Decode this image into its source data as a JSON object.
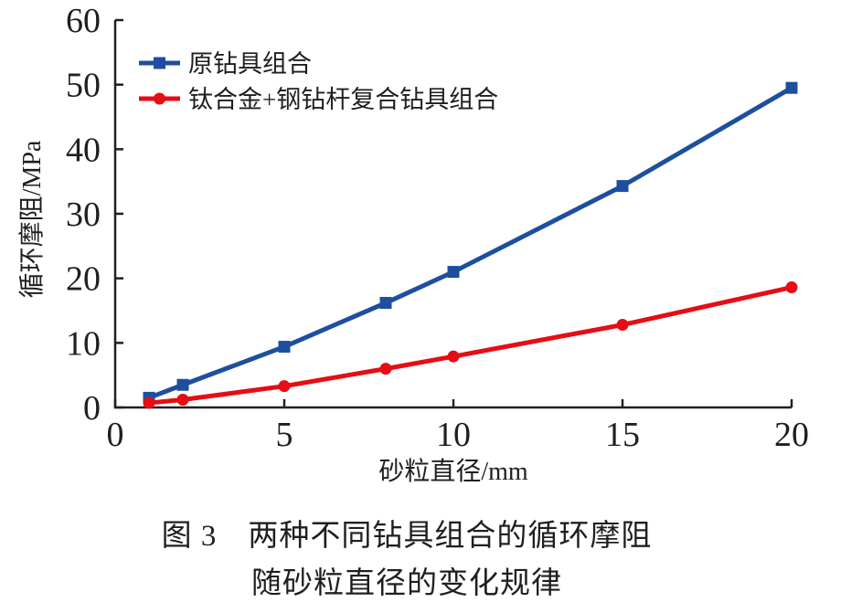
{
  "figure": {
    "background": "#ffffff",
    "text_color": "#1f1f1f",
    "axis_color": "#231f20"
  },
  "chart_data": {
    "type": "line",
    "title": "",
    "xlabel": "砂粒直径/mm",
    "ylabel": "循环摩阻/MPa",
    "xlim": [
      0,
      20
    ],
    "ylim": [
      0,
      60
    ],
    "xticks": [
      0,
      5,
      10,
      15,
      20
    ],
    "yticks": [
      0,
      10,
      20,
      30,
      40,
      50,
      60
    ],
    "grid": false,
    "legend_position": "top-left",
    "x": [
      1,
      2,
      5,
      8,
      10,
      15,
      20
    ],
    "series": [
      {
        "name": "原钻具组合",
        "color": "#1d4f9e",
        "marker": "square",
        "values": [
          1.5,
          3.5,
          9.4,
          16.2,
          21.0,
          34.3,
          49.5
        ]
      },
      {
        "name": "钛合金+钢钻杆复合钻具组合",
        "color": "#e60d15",
        "marker": "circle",
        "values": [
          0.7,
          1.2,
          3.3,
          6.0,
          7.9,
          12.8,
          18.6
        ]
      }
    ]
  },
  "caption": {
    "line1": "图 3　两种不同钻具组合的循环摩阻",
    "line2": "随砂粒直径的变化规律"
  }
}
